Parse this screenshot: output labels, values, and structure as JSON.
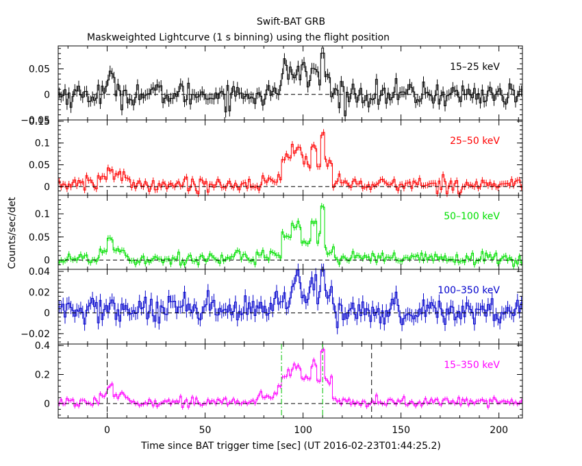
{
  "chart_data": {
    "type": "line",
    "title": "Swift-BAT GRB",
    "subtitle": "Maskweighted Lightcurve (1 s binning) using the flight position",
    "xlabel": "Time since BAT trigger time [sec] (UT 2016-02-23T01:44:25.2)",
    "ylabel": "Counts/sec/det",
    "xlim": [
      -25,
      212
    ],
    "x_ticks": [
      0,
      50,
      100,
      150,
      200
    ],
    "x_tick_labels": [
      "0",
      "50",
      "100",
      "150",
      "200"
    ],
    "step": 1,
    "markers": {
      "black_dashed": [
        0,
        135
      ],
      "green_dashdot": [
        89,
        110
      ]
    },
    "panels": [
      {
        "name": "15–25 keV",
        "color": "#000000",
        "ylim": [
          -0.05,
          0.095
        ],
        "y_ticks": [
          -0.05,
          0,
          0.05
        ],
        "y_tick_labels": [
          "−0.05",
          "0",
          "0.05"
        ],
        "noise": 0.012,
        "base": 0.0,
        "features": [
          {
            "t0": -1,
            "t1": 6,
            "level": 0.022
          },
          {
            "t0": 89,
            "t1": 94,
            "level": 0.055
          },
          {
            "t0": 94,
            "t1": 99,
            "level": 0.035
          },
          {
            "t0": 99,
            "t1": 101,
            "level": 0.062
          },
          {
            "t0": 101,
            "t1": 104,
            "level": 0.03
          },
          {
            "t0": 104,
            "t1": 107,
            "level": 0.05
          },
          {
            "t0": 107,
            "t1": 109,
            "level": 0.025
          },
          {
            "t0": 109,
            "t1": 111,
            "level": 0.078
          },
          {
            "t0": 111,
            "t1": 114,
            "level": 0.035
          }
        ]
      },
      {
        "name": "25–50 keV",
        "color": "#ff0000",
        "ylim": [
          -0.02,
          0.153
        ],
        "y_ticks": [
          0,
          0.05,
          0.1,
          0.15
        ],
        "y_tick_labels": [
          "0",
          "0.05",
          "0.1",
          "0.15"
        ],
        "noise": 0.008,
        "base": 0.005,
        "features": [
          {
            "t0": -5,
            "t1": 0,
            "level": 0.02
          },
          {
            "t0": 0,
            "t1": 3,
            "level": 0.042
          },
          {
            "t0": 3,
            "t1": 12,
            "level": 0.022
          },
          {
            "t0": 76,
            "t1": 89,
            "level": 0.012
          },
          {
            "t0": 89,
            "t1": 94,
            "level": 0.065
          },
          {
            "t0": 94,
            "t1": 99,
            "level": 0.085
          },
          {
            "t0": 99,
            "t1": 104,
            "level": 0.06
          },
          {
            "t0": 104,
            "t1": 107,
            "level": 0.09
          },
          {
            "t0": 107,
            "t1": 109,
            "level": 0.045
          },
          {
            "t0": 109,
            "t1": 111,
            "level": 0.13
          },
          {
            "t0": 111,
            "t1": 115,
            "level": 0.055
          },
          {
            "t0": 115,
            "t1": 122,
            "level": 0.012
          }
        ]
      },
      {
        "name": "50–100 keV",
        "color": "#00e000",
        "ylim": [
          -0.02,
          0.14
        ],
        "y_ticks": [
          0,
          0.05,
          0.1
        ],
        "y_tick_labels": [
          "0",
          "0.05",
          "0.1"
        ],
        "noise": 0.007,
        "base": 0.003,
        "features": [
          {
            "t0": -4,
            "t1": 0,
            "level": 0.02
          },
          {
            "t0": 0,
            "t1": 3,
            "level": 0.05
          },
          {
            "t0": 3,
            "t1": 10,
            "level": 0.02
          },
          {
            "t0": 76,
            "t1": 89,
            "level": 0.015
          },
          {
            "t0": 89,
            "t1": 94,
            "level": 0.05
          },
          {
            "t0": 94,
            "t1": 99,
            "level": 0.075
          },
          {
            "t0": 99,
            "t1": 104,
            "level": 0.04
          },
          {
            "t0": 104,
            "t1": 107,
            "level": 0.085
          },
          {
            "t0": 107,
            "t1": 109,
            "level": 0.045
          },
          {
            "t0": 109,
            "t1": 111,
            "level": 0.115
          },
          {
            "t0": 111,
            "t1": 116,
            "level": 0.02
          }
        ]
      },
      {
        "name": "100–350 keV",
        "color": "#0000cc",
        "ylim": [
          -0.03,
          0.042
        ],
        "y_ticks": [
          -0.02,
          0,
          0.02,
          0.04
        ],
        "y_tick_labels": [
          "−0.02",
          "0",
          "0.02",
          "0.04"
        ],
        "noise": 0.007,
        "base": 0.002,
        "features": [
          {
            "t0": -2,
            "t1": 4,
            "level": 0.008
          },
          {
            "t0": 85,
            "t1": 94,
            "level": 0.012
          },
          {
            "t0": 94,
            "t1": 99,
            "level": 0.025
          },
          {
            "t0": 99,
            "t1": 104,
            "level": 0.015
          },
          {
            "t0": 104,
            "t1": 107,
            "level": 0.028
          },
          {
            "t0": 107,
            "t1": 109,
            "level": 0.01
          },
          {
            "t0": 109,
            "t1": 111,
            "level": 0.035
          },
          {
            "t0": 111,
            "t1": 116,
            "level": 0.015
          }
        ]
      },
      {
        "name": "15–350 keV",
        "color": "#ff00ff",
        "ylim": [
          -0.1,
          0.41
        ],
        "y_ticks": [
          0,
          0.2,
          0.4
        ],
        "y_tick_labels": [
          "0",
          "0.2",
          "0.4"
        ],
        "noise": 0.017,
        "base": 0.01,
        "features": [
          {
            "t0": -4,
            "t1": 0,
            "level": 0.07
          },
          {
            "t0": 0,
            "t1": 3,
            "level": 0.14
          },
          {
            "t0": 3,
            "t1": 12,
            "level": 0.06
          },
          {
            "t0": 76,
            "t1": 85,
            "level": 0.04
          },
          {
            "t0": 85,
            "t1": 89,
            "level": 0.09
          },
          {
            "t0": 89,
            "t1": 94,
            "level": 0.2
          },
          {
            "t0": 94,
            "t1": 99,
            "level": 0.25
          },
          {
            "t0": 99,
            "t1": 104,
            "level": 0.17
          },
          {
            "t0": 104,
            "t1": 107,
            "level": 0.26
          },
          {
            "t0": 107,
            "t1": 109,
            "level": 0.14
          },
          {
            "t0": 109,
            "t1": 111,
            "level": 0.38
          },
          {
            "t0": 111,
            "t1": 115,
            "level": 0.16
          },
          {
            "t0": 115,
            "t1": 125,
            "level": 0.025
          }
        ]
      }
    ]
  }
}
